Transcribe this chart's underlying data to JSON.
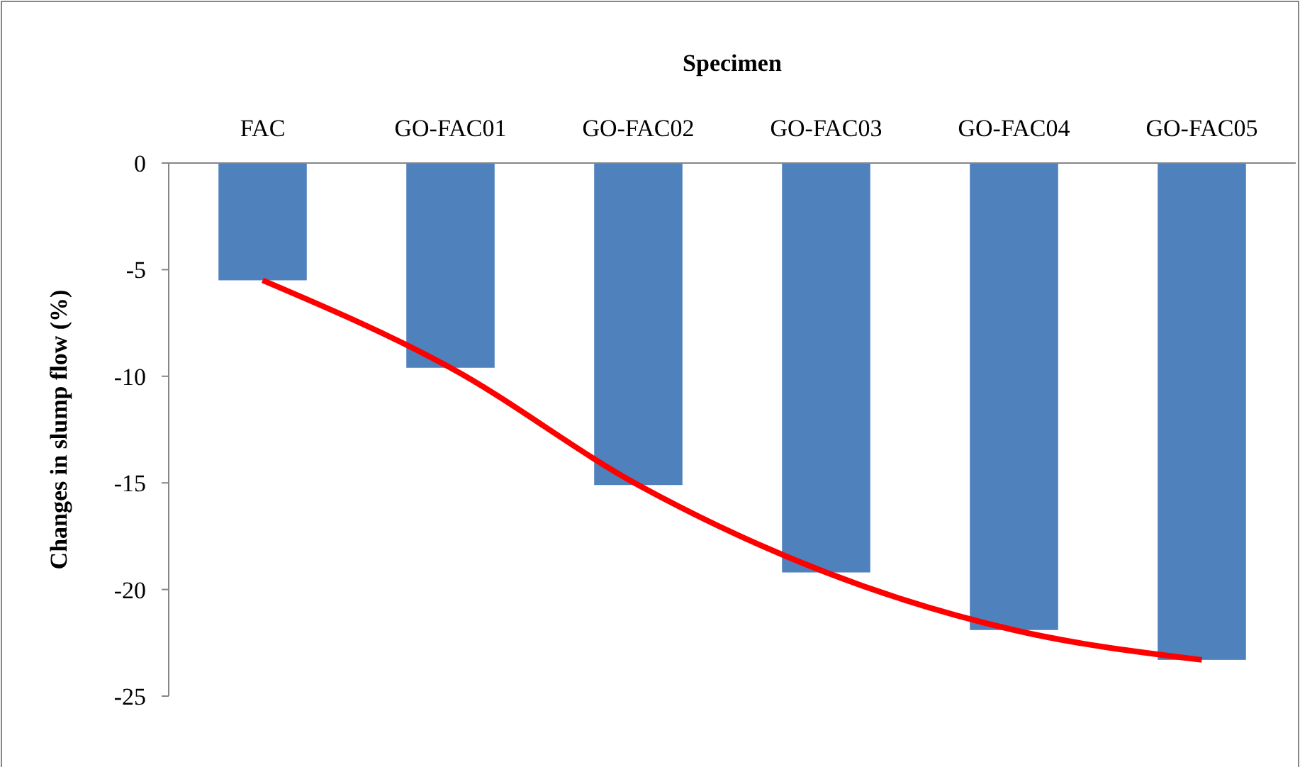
{
  "chart_data": {
    "type": "bar",
    "xlabel": "Specimen",
    "ylabel": "Changes in slump flow (%)",
    "categories": [
      "FAC",
      "GO-FAC01",
      "GO-FAC02",
      "GO-FAC03",
      "GO-FAC04",
      "GO-FAC05"
    ],
    "series": [
      {
        "color": "#4f81bd",
        "values": [
          -5.5,
          -9.6,
          -15.1,
          -19.2,
          -21.9,
          -23.3
        ]
      },
      {
        "type": "line",
        "color": "#ff0000",
        "values": [
          -5.5,
          -9.6,
          -15.1,
          -19.2,
          -21.9,
          -23.3
        ]
      }
    ],
    "ylim": [
      -25,
      0
    ],
    "yticks": [
      0,
      -5,
      -10,
      -15,
      -20,
      -25
    ],
    "grid": false,
    "marker": "none",
    "line_style": "solid"
  }
}
